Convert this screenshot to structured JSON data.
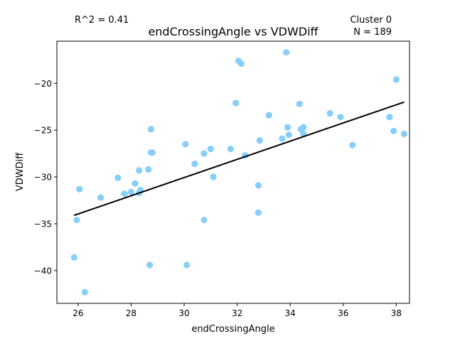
{
  "chart_data": {
    "type": "scatter",
    "title": "endCrossingAngle vs VDWDiff",
    "xlabel": "endCrossingAngle",
    "ylabel": "VDWDiff",
    "xlim": [
      25.2,
      38.5
    ],
    "ylim": [
      -43.5,
      -15.5
    ],
    "xticks": [
      26,
      28,
      30,
      32,
      34,
      36,
      38
    ],
    "yticks": [
      -40,
      -35,
      -30,
      -25,
      -20
    ],
    "grid": false,
    "annotations": {
      "r2": "R^2 = 0.41",
      "cluster": "Cluster 0",
      "n": "N = 189"
    },
    "point_color": "#87CEFA",
    "line_color": "#000000",
    "points": [
      {
        "x": 25.85,
        "y": -38.6
      },
      {
        "x": 25.95,
        "y": -34.6
      },
      {
        "x": 26.05,
        "y": -31.3
      },
      {
        "x": 26.25,
        "y": -42.3
      },
      {
        "x": 26.85,
        "y": -32.2
      },
      {
        "x": 27.5,
        "y": -30.1
      },
      {
        "x": 27.75,
        "y": -31.8
      },
      {
        "x": 28.0,
        "y": -31.6
      },
      {
        "x": 28.15,
        "y": -30.7
      },
      {
        "x": 28.3,
        "y": -29.3
      },
      {
        "x": 28.3,
        "y": -31.7
      },
      {
        "x": 28.35,
        "y": -31.4
      },
      {
        "x": 28.65,
        "y": -29.2
      },
      {
        "x": 28.7,
        "y": -39.4
      },
      {
        "x": 28.75,
        "y": -24.9
      },
      {
        "x": 28.75,
        "y": -27.4
      },
      {
        "x": 28.8,
        "y": -27.4
      },
      {
        "x": 30.05,
        "y": -26.5
      },
      {
        "x": 30.1,
        "y": -39.4
      },
      {
        "x": 30.4,
        "y": -28.6
      },
      {
        "x": 30.75,
        "y": -27.5
      },
      {
        "x": 30.75,
        "y": -34.6
      },
      {
        "x": 31.0,
        "y": -27.0
      },
      {
        "x": 31.1,
        "y": -30.0
      },
      {
        "x": 31.75,
        "y": -27.0
      },
      {
        "x": 31.95,
        "y": -22.1
      },
      {
        "x": 32.05,
        "y": -17.6
      },
      {
        "x": 32.15,
        "y": -17.9
      },
      {
        "x": 32.3,
        "y": -27.7
      },
      {
        "x": 32.8,
        "y": -30.9
      },
      {
        "x": 32.8,
        "y": -33.8
      },
      {
        "x": 32.85,
        "y": -26.1
      },
      {
        "x": 33.2,
        "y": -23.4
      },
      {
        "x": 33.7,
        "y": -25.9
      },
      {
        "x": 33.85,
        "y": -16.7
      },
      {
        "x": 33.9,
        "y": -24.7
      },
      {
        "x": 33.95,
        "y": -25.5
      },
      {
        "x": 34.35,
        "y": -22.2
      },
      {
        "x": 34.4,
        "y": -24.9
      },
      {
        "x": 34.5,
        "y": -24.7
      },
      {
        "x": 34.5,
        "y": -25.4
      },
      {
        "x": 35.5,
        "y": -23.2
      },
      {
        "x": 35.9,
        "y": -23.6
      },
      {
        "x": 36.35,
        "y": -26.6
      },
      {
        "x": 37.75,
        "y": -23.6
      },
      {
        "x": 37.9,
        "y": -25.1
      },
      {
        "x": 38.0,
        "y": -19.6
      },
      {
        "x": 38.3,
        "y": -25.4
      }
    ],
    "regression": {
      "x": [
        25.85,
        38.3
      ],
      "y": [
        -34.1,
        -22.0
      ]
    }
  }
}
